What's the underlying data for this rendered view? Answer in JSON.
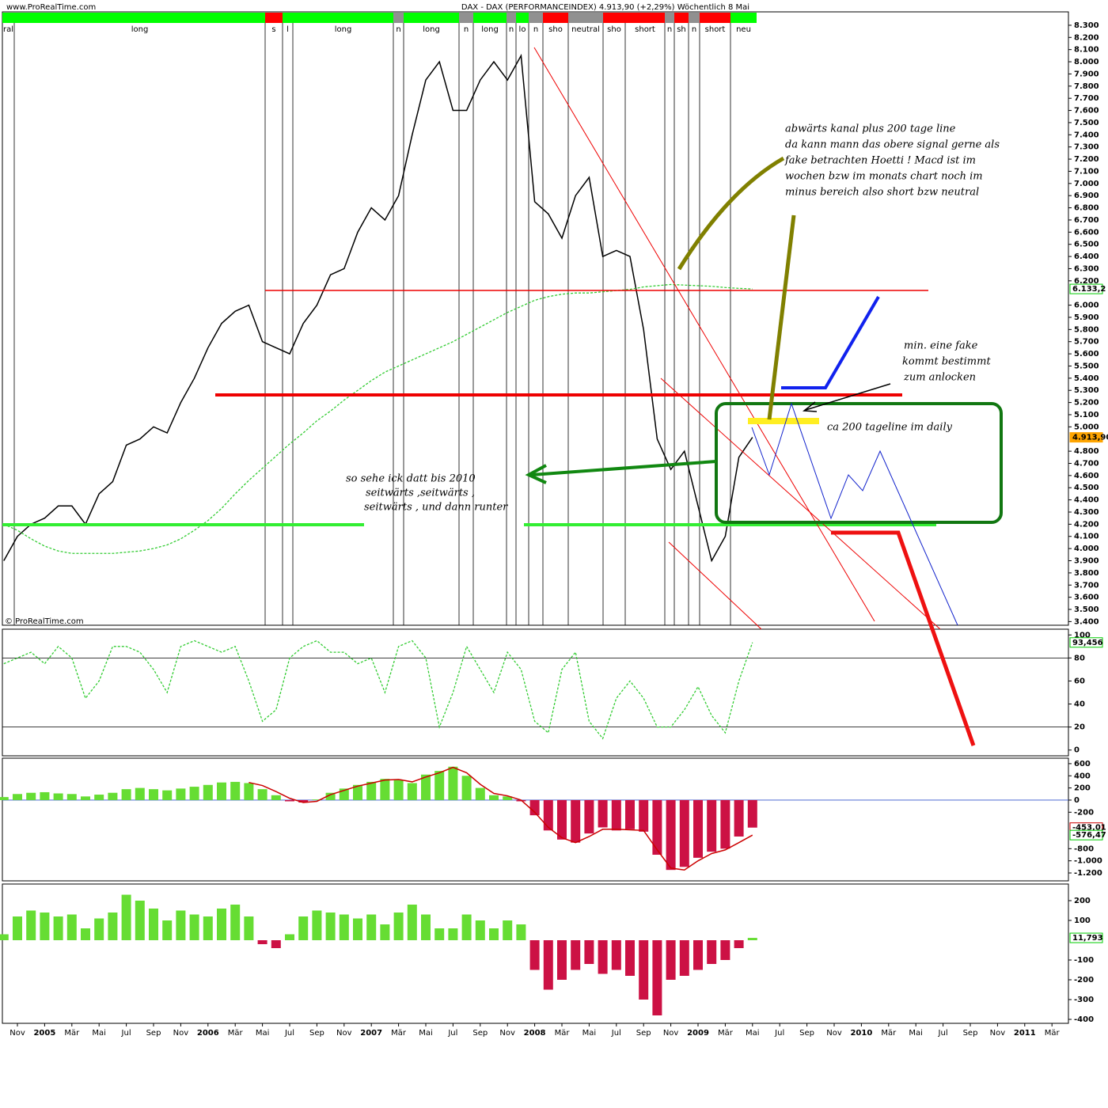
{
  "header": {
    "site": "www.ProRealTime.com",
    "title": "DAX - DAX (PERFORMANCEINDEX)    4.913,90 (+2,29%)    Wöchentlich  8 Mai",
    "copyright": "© ProRealTime.com"
  },
  "phases": [
    {
      "label": "ral",
      "color": "#00ff00"
    },
    {
      "label": "long",
      "color": "#00ff00"
    },
    {
      "label": "s",
      "color": "#ff0000"
    },
    {
      "label": "l",
      "color": "#00ff00"
    },
    {
      "label": "long",
      "color": "#00ff00"
    },
    {
      "label": "n",
      "color": "#909090"
    },
    {
      "label": "long",
      "color": "#00ff00"
    },
    {
      "label": "n",
      "color": "#909090"
    },
    {
      "label": "long",
      "color": "#00ff00"
    },
    {
      "label": "n",
      "color": "#909090"
    },
    {
      "label": "lo",
      "color": "#00ff00"
    },
    {
      "label": "n",
      "color": "#909090"
    },
    {
      "label": "sho",
      "color": "#ff0000"
    },
    {
      "label": "neutral",
      "color": "#909090"
    },
    {
      "label": "sho",
      "color": "#ff0000"
    },
    {
      "label": "short",
      "color": "#ff0000"
    },
    {
      "label": "n",
      "color": "#909090"
    },
    {
      "label": "sh",
      "color": "#ff0000"
    },
    {
      "label": "n",
      "color": "#909090"
    },
    {
      "label": "short",
      "color": "#ff0000"
    },
    {
      "label": "neu",
      "color": "#00ff00"
    }
  ],
  "annotations": {
    "olive": [
      "abwärts kanal   plus 200 tage line",
      "da kann mann das obere signal gerne als",
      "fake betrachten  Hoetti !  Macd  ist im",
      "wochen bzw im monats chart noch im",
      "minus bereich also short bzw neutral"
    ],
    "black": [
      "min. eine fake",
      "kommt bestimmt",
      "zum anlocken"
    ],
    "daily": "ca 200 tageline im daily",
    "green": [
      "so sehe ick datt bis 2010",
      "seitwärts  ,seitwärts ,",
      "seitwärts , und dann  runter"
    ]
  },
  "chart_data": [
    {
      "type": "line",
      "ylim": [
        3370,
        8410
      ],
      "yticks": [
        {
          "value": 3400,
          "label": "3.400"
        },
        {
          "value": 3500,
          "label": "3.500"
        },
        {
          "value": 3600,
          "label": "3.600"
        },
        {
          "value": 3700,
          "label": "3.700"
        },
        {
          "value": 3800,
          "label": "3.800"
        },
        {
          "value": 3900,
          "label": "3.900"
        },
        {
          "value": 4000,
          "label": "4.000"
        },
        {
          "value": 4100,
          "label": "4.100"
        },
        {
          "value": 4200,
          "label": "4.200"
        },
        {
          "value": 4300,
          "label": "4.300"
        },
        {
          "value": 4400,
          "label": "4.400"
        },
        {
          "value": 4500,
          "label": "4.500"
        },
        {
          "value": 4600,
          "label": "4.600"
        },
        {
          "value": 4700,
          "label": "4.700"
        },
        {
          "value": 4800,
          "label": "4.800"
        },
        {
          "value": 5000,
          "label": "5.000"
        },
        {
          "value": 5100,
          "label": "5.100"
        },
        {
          "value": 5200,
          "label": "5.200"
        },
        {
          "value": 5300,
          "label": "5.300"
        },
        {
          "value": 5400,
          "label": "5.400"
        },
        {
          "value": 5500,
          "label": "5.500"
        },
        {
          "value": 5600,
          "label": "5.600"
        },
        {
          "value": 5700,
          "label": "5.700"
        },
        {
          "value": 5800,
          "label": "5.800"
        },
        {
          "value": 5900,
          "label": "5.900"
        },
        {
          "value": 6000,
          "label": "6.000"
        },
        {
          "value": 6200,
          "label": "6.200"
        },
        {
          "value": 6300,
          "label": "6.300"
        },
        {
          "value": 6400,
          "label": "6.400"
        },
        {
          "value": 6500,
          "label": "6.500"
        },
        {
          "value": 6600,
          "label": "6.600"
        },
        {
          "value": 6700,
          "label": "6.700"
        },
        {
          "value": 6800,
          "label": "6.800"
        },
        {
          "value": 6900,
          "label": "6.900"
        },
        {
          "value": 7000,
          "label": "7.000"
        },
        {
          "value": 7100,
          "label": "7.100"
        },
        {
          "value": 7200,
          "label": "7.200"
        },
        {
          "value": 7300,
          "label": "7.300"
        },
        {
          "value": 7400,
          "label": "7.400"
        },
        {
          "value": 7500,
          "label": "7.500"
        },
        {
          "value": 7600,
          "label": "7.600"
        },
        {
          "value": 7700,
          "label": "7.700"
        },
        {
          "value": 7800,
          "label": "7.800"
        },
        {
          "value": 7900,
          "label": "7.900"
        },
        {
          "value": 8000,
          "label": "8.000"
        },
        {
          "value": 8100,
          "label": "8.100"
        },
        {
          "value": 8200,
          "label": "8.200"
        },
        {
          "value": 8300,
          "label": "8.300"
        }
      ],
      "series": [
        {
          "type": "line",
          "color": "#000000",
          "values": [
            3900,
            4100,
            4200,
            4250,
            4350,
            4350,
            4200,
            4450,
            4550,
            4850,
            4900,
            5000,
            4950,
            5200,
            5400,
            5650,
            5850,
            5950,
            6000,
            5700,
            5650,
            5600,
            5850,
            6000,
            6250,
            6300,
            6600,
            6800,
            6700,
            6900,
            7400,
            7850,
            8000,
            7600,
            7600,
            7850,
            8000,
            7850,
            8050,
            6850,
            6750,
            6550,
            6900,
            7050,
            6400,
            6450,
            6400,
            5800,
            4900,
            4650,
            4800,
            4350,
            3900,
            4100,
            4750,
            4913.9,
            null,
            null,
            null,
            null,
            null,
            null,
            null,
            null,
            null,
            null,
            null,
            null,
            null,
            null,
            null,
            null,
            null,
            null,
            null,
            null,
            null,
            null,
            null
          ]
        },
        {
          "type": "line",
          "color": "#33cc33",
          "dashed": true,
          "values": [
            4200,
            4150,
            4080,
            4020,
            3980,
            3960,
            3960,
            3960,
            3960,
            3970,
            3980,
            4000,
            4030,
            4080,
            4150,
            4230,
            4330,
            4450,
            4560,
            4660,
            4760,
            4860,
            4950,
            5050,
            5130,
            5220,
            5300,
            5380,
            5450,
            5500,
            5550,
            5600,
            5650,
            5700,
            5760,
            5820,
            5880,
            5940,
            5990,
            6040,
            6070,
            6090,
            6100,
            6100,
            6110,
            6120,
            6130,
            6150,
            6160,
            6170,
            6165,
            6160,
            6155,
            6145,
            6138,
            6133.2,
            null,
            null,
            null,
            null,
            null,
            null,
            null,
            null,
            null,
            null,
            null,
            null,
            null,
            null,
            null,
            null,
            null,
            null,
            null,
            null,
            null,
            null,
            null
          ]
        }
      ],
      "badges": [
        {
          "value": 6133.2,
          "label": "6.133,2",
          "color": "#00cc00"
        },
        {
          "value": 4913.9,
          "label": "4.913,90",
          "color": "#ffa500"
        }
      ]
    },
    {
      "type": "line",
      "ylim": [
        -5,
        105
      ],
      "yticks": [
        0,
        20,
        40,
        60,
        80,
        100
      ],
      "hlines": [
        80,
        20
      ],
      "series": [
        {
          "type": "line",
          "color": "#33cc33",
          "dashed": true,
          "values": [
            75,
            80,
            85,
            75,
            90,
            80,
            45,
            60,
            90,
            90,
            85,
            70,
            50,
            90,
            95,
            90,
            85,
            90,
            60,
            25,
            35,
            80,
            90,
            95,
            85,
            85,
            75,
            80,
            50,
            90,
            95,
            80,
            20,
            50,
            90,
            70,
            50,
            85,
            70,
            25,
            15,
            70,
            85,
            25,
            10,
            45,
            60,
            45,
            20,
            20,
            35,
            55,
            30,
            15,
            60,
            93.456,
            null,
            null,
            null,
            null,
            null,
            null,
            null,
            null,
            null,
            null,
            null,
            null,
            null,
            null,
            null,
            null,
            null,
            null,
            null,
            null,
            null,
            null,
            null
          ]
        }
      ],
      "badges": [
        {
          "value": 93.456,
          "label": "93,456",
          "color": "#00cc00"
        }
      ]
    },
    {
      "type": "bar",
      "ylim": [
        -1330,
        690
      ],
      "yticks": [
        600,
        400,
        200,
        0,
        -200,
        -800,
        {
          "value": -1000,
          "label": "-1.000"
        },
        {
          "value": -1200,
          "label": "-1.200"
        }
      ],
      "hlines": [
        0
      ],
      "series": [
        {
          "type": "bar",
          "color": "#66dd33",
          "neg_color": "#cc1144",
          "values": [
            50,
            100,
            120,
            130,
            110,
            100,
            60,
            90,
            120,
            180,
            200,
            180,
            160,
            190,
            220,
            250,
            290,
            300,
            280,
            180,
            80,
            -20,
            -40,
            10,
            120,
            190,
            250,
            300,
            350,
            330,
            280,
            420,
            480,
            550,
            400,
            200,
            80,
            60,
            -20,
            -250,
            -500,
            -650,
            -700,
            -550,
            -450,
            -500,
            -480,
            -520,
            -900,
            -1150,
            -1100,
            -950,
            -850,
            -800,
            -600,
            -453.01,
            null,
            null,
            null,
            null,
            null,
            null,
            null,
            null,
            null,
            null,
            null,
            null,
            null,
            null,
            null,
            null,
            null,
            null,
            null,
            null,
            null,
            null,
            null
          ]
        },
        {
          "type": "line",
          "color": "#cc0000",
          "values": [
            null,
            null,
            null,
            null,
            null,
            null,
            null,
            null,
            null,
            null,
            null,
            null,
            null,
            null,
            null,
            null,
            null,
            null,
            290,
            240,
            140,
            30,
            -40,
            -20,
            90,
            160,
            230,
            280,
            330,
            340,
            300,
            380,
            450,
            540,
            450,
            260,
            110,
            70,
            0,
            -200,
            -450,
            -620,
            -700,
            -600,
            -480,
            -480,
            -490,
            -500,
            -820,
            -1120,
            -1150,
            -1000,
            -880,
            -820,
            -700,
            -576.47,
            null,
            null,
            null,
            null,
            null,
            null,
            null,
            null,
            null,
            null,
            null,
            null,
            null,
            null,
            null,
            null,
            null,
            null,
            null,
            null,
            null,
            null,
            null
          ]
        }
      ],
      "badges": [
        {
          "value": -453.01,
          "label": "-453,01",
          "color": "#cc0000"
        },
        {
          "value": -576.47,
          "label": "-576,47",
          "color": "#00cc00"
        }
      ]
    },
    {
      "type": "bar",
      "ylim": [
        -420,
        284
      ],
      "yticks": [
        200,
        100,
        -100,
        -200,
        -300,
        -400
      ],
      "categories": [
        null,
        "Nov",
        null,
        "2005",
        null,
        "Mär",
        null,
        "Mai",
        null,
        "Jul",
        null,
        "Sep",
        null,
        "Nov",
        null,
        "2006",
        null,
        "Mär",
        null,
        "Mai",
        null,
        "Jul",
        null,
        "Sep",
        null,
        "Nov",
        null,
        "2007",
        null,
        "Mär",
        null,
        "Mai",
        null,
        "Jul",
        null,
        "Sep",
        null,
        "Nov",
        null,
        "2008",
        null,
        "Mär",
        null,
        "Mai",
        null,
        "Jul",
        null,
        "Sep",
        null,
        "Nov",
        null,
        "2009",
        null,
        "Mär",
        null,
        "Mai",
        null,
        "Jul",
        null,
        "Sep",
        null,
        "Nov",
        null,
        "2010",
        null,
        "Mär",
        null,
        "Mai",
        null,
        "Jul",
        null,
        "Sep",
        null,
        "Nov",
        null,
        "2011",
        null,
        "Mär",
        null
      ],
      "series": [
        {
          "type": "bar",
          "color": "#66dd33",
          "neg_color": "#cc1144",
          "values": [
            30,
            120,
            150,
            140,
            120,
            130,
            60,
            110,
            140,
            230,
            200,
            160,
            100,
            150,
            130,
            120,
            160,
            180,
            120,
            -20,
            -40,
            30,
            120,
            150,
            140,
            130,
            110,
            130,
            80,
            140,
            180,
            130,
            60,
            60,
            130,
            100,
            60,
            100,
            80,
            -150,
            -250,
            -200,
            -150,
            -120,
            -170,
            -150,
            -180,
            -300,
            -380,
            -200,
            -180,
            -150,
            -120,
            -100,
            -40,
            11.793,
            null,
            null,
            null,
            null,
            null,
            null,
            null,
            null,
            null,
            null,
            null,
            null,
            null,
            null,
            null,
            null,
            null,
            null,
            null,
            null,
            null,
            null,
            null
          ]
        }
      ],
      "badges": [
        {
          "value": 11.793,
          "label": "11,793",
          "color": "#00cc00"
        }
      ]
    }
  ]
}
